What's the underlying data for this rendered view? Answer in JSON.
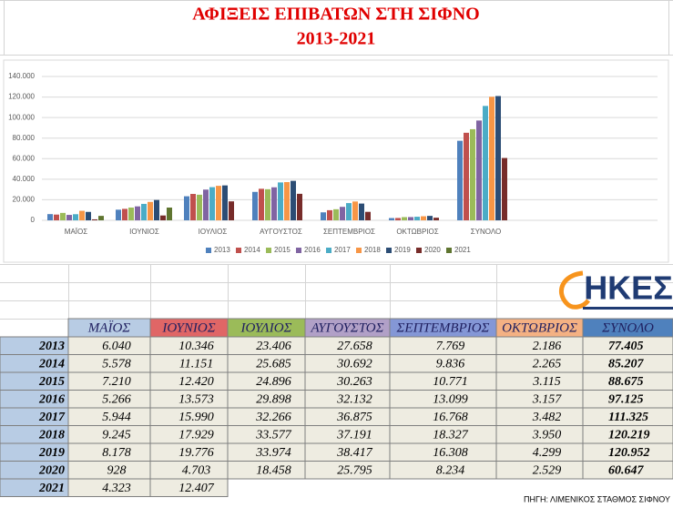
{
  "chart_data": {
    "type": "bar",
    "title": "ΑΦΙΞΕΙΣ ΕΠΙΒΑΤΩΝ ΣΤΗ ΣΙΦΝΟ",
    "subtitle": "2013-2021",
    "categories": [
      "ΜΑΪΟΣ",
      "ΙΟΥΝΙΟΣ",
      "ΙΟΥΛΙΟΣ",
      "ΑΥΓΟΥΣΤΟΣ",
      "ΣΕΠΤΕΜΒΡΙΟΣ",
      "ΟΚΤΩΒΡΙΟΣ",
      "ΣΥΝΟΛΟ"
    ],
    "series": [
      {
        "name": "2013",
        "color": "#4f81bd",
        "values": [
          6040,
          10346,
          23406,
          27658,
          7769,
          2186,
          77405
        ]
      },
      {
        "name": "2014",
        "color": "#c0504d",
        "values": [
          5578,
          11151,
          25685,
          30692,
          9836,
          2265,
          85207
        ]
      },
      {
        "name": "2015",
        "color": "#9bbb59",
        "values": [
          7210,
          12420,
          24896,
          30263,
          10771,
          3115,
          88675
        ]
      },
      {
        "name": "2016",
        "color": "#8064a2",
        "values": [
          5266,
          13573,
          29898,
          32132,
          13099,
          3157,
          97125
        ]
      },
      {
        "name": "2017",
        "color": "#4bacc6",
        "values": [
          5944,
          15990,
          32266,
          36875,
          16768,
          3482,
          111325
        ]
      },
      {
        "name": "2018",
        "color": "#f79646",
        "values": [
          9245,
          17929,
          33577,
          37191,
          18327,
          3950,
          120219
        ]
      },
      {
        "name": "2019",
        "color": "#2c4d75",
        "values": [
          8178,
          19776,
          33974,
          38417,
          16308,
          4299,
          120952
        ]
      },
      {
        "name": "2020",
        "color": "#772c2a",
        "values": [
          928,
          4703,
          18458,
          25795,
          8234,
          2529,
          60647
        ]
      },
      {
        "name": "2021",
        "color": "#5f7530",
        "values": [
          4323,
          12407,
          null,
          null,
          null,
          null,
          null
        ]
      }
    ],
    "ylim": [
      0,
      140000
    ],
    "yticks": [
      0,
      {
        "value": 20000,
        "label": "20.000"
      },
      {
        "value": 40000,
        "label": "40.000"
      },
      {
        "value": 60000,
        "label": "60.000"
      },
      {
        "value": 80000,
        "label": "80.000"
      },
      {
        "value": 100000,
        "label": "100.000"
      },
      {
        "value": 120000,
        "label": "120.000"
      },
      {
        "value": 140000,
        "label": "140.000"
      }
    ],
    "grid": true,
    "legend": "bottom"
  },
  "table": {
    "columns": [
      "ΜΑΪΟΣ",
      "ΙΟΥΝΙΟΣ",
      "ΙΟΥΛΙΟΣ",
      "ΑΥΓΟΥΣΤΟΣ",
      "ΣΕΠΤΕΜΒΡΙΟΣ",
      "ΟΚΤΩΒΡΙΟΣ",
      "ΣΥΝΟΛΟ"
    ],
    "header_colors": [
      "#b8cce4",
      "#e06666",
      "#9bbb59",
      "#b1a0c7",
      "#8497d6",
      "#f4b183",
      "#4f81bd"
    ],
    "rows": [
      [
        "2013",
        "6.040",
        "10.346",
        "23.406",
        "27.658",
        "7.769",
        "2.186",
        "77.405"
      ],
      [
        "2014",
        "5.578",
        "11.151",
        "25.685",
        "30.692",
        "9.836",
        "2.265",
        "85.207"
      ],
      [
        "2015",
        "7.210",
        "12.420",
        "24.896",
        "30.263",
        "10.771",
        "3.115",
        "88.675"
      ],
      [
        "2016",
        "5.266",
        "13.573",
        "29.898",
        "32.132",
        "13.099",
        "3.157",
        "97.125"
      ],
      [
        "2017",
        "5.944",
        "15.990",
        "32.266",
        "36.875",
        "16.768",
        "3.482",
        "111.325"
      ],
      [
        "2018",
        "9.245",
        "17.929",
        "33.577",
        "37.191",
        "18.327",
        "3.950",
        "120.219"
      ],
      [
        "2019",
        "8.178",
        "19.776",
        "33.974",
        "38.417",
        "16.308",
        "4.299",
        "120.952"
      ],
      [
        "2020",
        "928",
        "4.703",
        "18.458",
        "25.795",
        "8.234",
        "2.529",
        "60.647"
      ],
      [
        "2021",
        "4.323",
        "12.407"
      ]
    ]
  },
  "logo": "ΗΚΕΣ",
  "source": "ΠΗΓΗ: ΛΙΜΕΝΙΚΟΣ ΣΤΑΘΜΟΣ ΣΙΦΝΟΥ"
}
